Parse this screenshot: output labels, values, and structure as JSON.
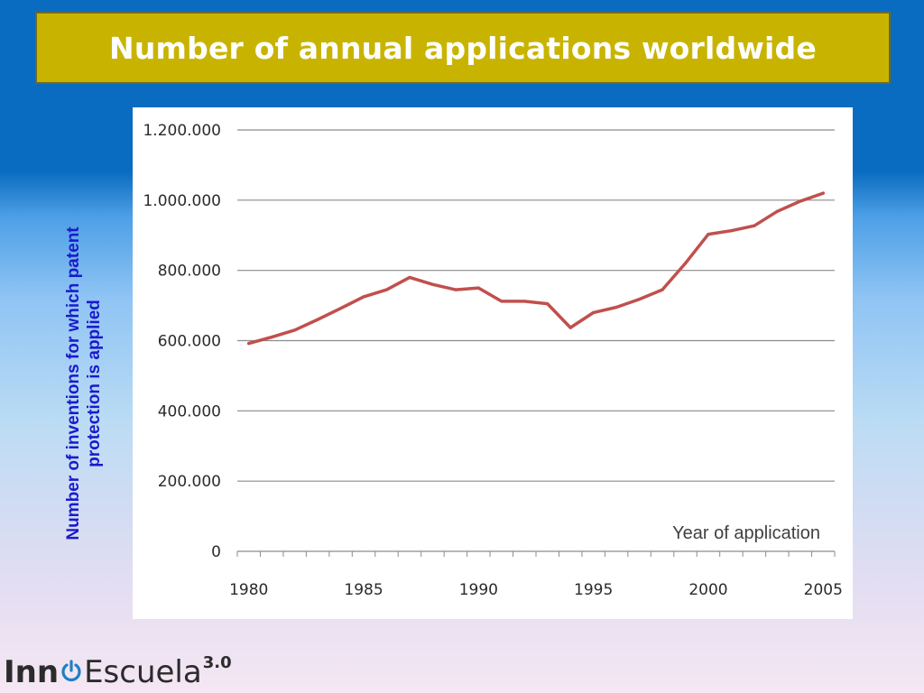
{
  "slide": {
    "title": "Number of annual applications worldwide",
    "logo": {
      "part1": "Inn",
      "part2": "Escuela",
      "version": "3.0"
    }
  },
  "chart_data": {
    "type": "line",
    "title": "",
    "xlabel": "Year of application",
    "ylabel": "Number of inventions for which patent protection is applied",
    "x": [
      1980,
      1981,
      1982,
      1983,
      1984,
      1985,
      1986,
      1987,
      1988,
      1989,
      1990,
      1991,
      1992,
      1993,
      1994,
      1995,
      1996,
      1997,
      1998,
      1999,
      2000,
      2001,
      2002,
      2003,
      2004,
      2005
    ],
    "series": [
      {
        "values": [
          592000,
          610000,
          630000,
          660000,
          692000,
          725000,
          745000,
          780000,
          760000,
          745000,
          750000,
          712000,
          712000,
          705000,
          637000,
          680000,
          695000,
          718000,
          745000,
          820000,
          903000,
          913000,
          927000,
          968000,
          997000,
          1020000
        ],
        "color": "#c0504d"
      }
    ],
    "xlim": [
      1979.5,
      2005.5
    ],
    "ylim": [
      0,
      1200000
    ],
    "yticks": [
      0,
      200000,
      400000,
      600000,
      800000,
      1000000,
      1200000
    ],
    "ytick_labels": [
      "0",
      "200.000",
      "400.000",
      "600.000",
      "800.000",
      "1.000.000",
      "1.200.000"
    ],
    "xticks": [
      1980,
      1985,
      1990,
      1995,
      2000,
      2005
    ],
    "xtick_labels": [
      "1980",
      "1985",
      "1990",
      "1995",
      "2000",
      "2005"
    ],
    "grid": true,
    "legend": "none"
  }
}
